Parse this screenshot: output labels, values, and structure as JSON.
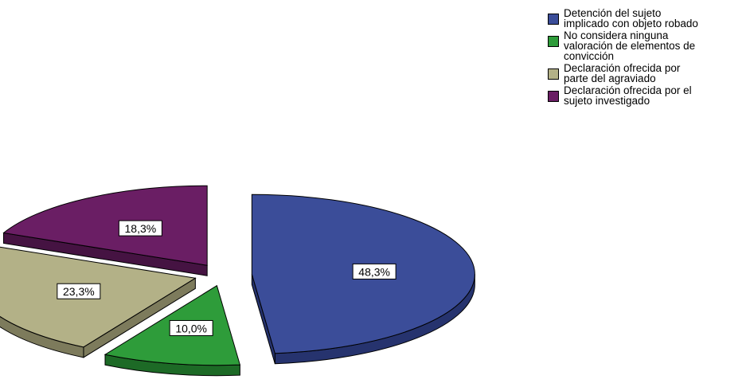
{
  "chart_data": {
    "type": "pie",
    "title": "",
    "slices": [
      {
        "label": "Detención del sujeto\nimplicado con objeto robado",
        "value": 48.3,
        "value_label": "48,3%",
        "color": "#3b4d99",
        "side_color": "#26336e"
      },
      {
        "label": "No considera ninguna\nvaloración de elementos de\nconvicción",
        "value": 10.0,
        "value_label": "10,0%",
        "color": "#2e9c3a",
        "side_color": "#1d6a26"
      },
      {
        "label": "Declaración ofrecida por\nparte del agraviado",
        "value": 23.3,
        "value_label": "23,3%",
        "color": "#b3b187",
        "side_color": "#7d7b5c"
      },
      {
        "label": "Declaración ofrecida por el\nsujeto investigado",
        "value": 18.3,
        "value_label": "18,3%",
        "color": "#6a1e64",
        "side_color": "#451342"
      }
    ],
    "exploded": true,
    "three_d": true,
    "legend_position": "top-right"
  }
}
